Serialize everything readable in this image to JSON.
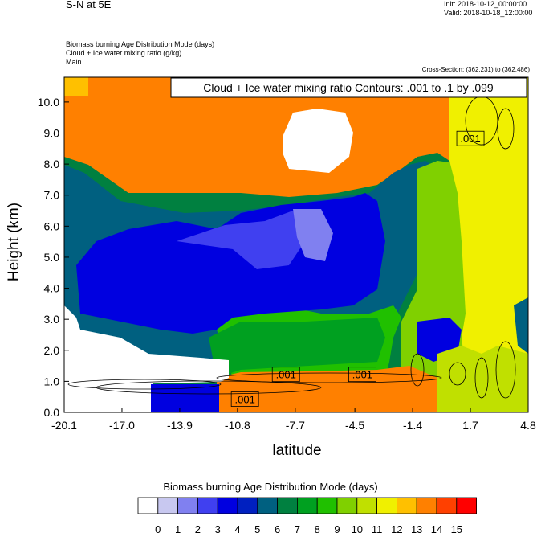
{
  "header": {
    "title": "S-N at 5E",
    "init": "Init: 2018-10-12_00:00:00",
    "valid": "Valid: 2018-10-18_12:00:00",
    "fields": [
      "Biomass burning Age Distribution Mode   (days)",
      "Cloud + Ice water mixing ratio   (g/kg)",
      "Main"
    ],
    "cross_section": "Cross-Section: (362,231) to (362,486)"
  },
  "colors": {
    "palette": [
      "#ffffff",
      "#c8c8f0",
      "#8080f0",
      "#4040f0",
      "#0000e0",
      "#0020c0",
      "#006080",
      "#008040",
      "#00a020",
      "#20c000",
      "#80d000",
      "#c0e000",
      "#f0f000",
      "#ffc000",
      "#ff8000",
      "#ff4000",
      "#ff0000"
    ]
  },
  "chart_data": {
    "type": "heatmap",
    "title": "Cloud + Ice water mixing ratio Contours: .001 to .1 by .099",
    "xlabel": "latitude",
    "ylabel": "Height (km)",
    "x_ticks": [
      "-20.1",
      "-17.0",
      "-13.9",
      "-10.8",
      "-7.7",
      "-4.5",
      "-1.4",
      "1.7",
      "4.8"
    ],
    "xlim": [
      -20.1,
      4.8
    ],
    "y_ticks": [
      "0.0",
      "1.0",
      "2.0",
      "3.0",
      "4.0",
      "5.0",
      "6.0",
      "7.0",
      "8.0",
      "9.0",
      "10.0"
    ],
    "ylim": [
      0,
      10.8
    ],
    "colorbar": {
      "title": "Biomass burning Age Distribution Mode  (days)",
      "levels": [
        "0",
        "1",
        "2",
        "3",
        "4",
        "5",
        "6",
        "7",
        "8",
        "9",
        "10",
        "11",
        "12",
        "13",
        "14",
        "15"
      ]
    },
    "contour_labels": [
      {
        "text": ".001",
        "x": 1.7,
        "y": 8.8
      },
      {
        "text": ".001",
        "x": -8.2,
        "y": 1.2
      },
      {
        "text": ".001",
        "x": -4.1,
        "y": 1.2
      },
      {
        "text": ".001",
        "x": -10.4,
        "y": 0.4
      }
    ],
    "region_levels": [
      {
        "name": "upper-orange",
        "level": 14
      },
      {
        "name": "white-cloud",
        "level": 0
      },
      {
        "name": "teal-band",
        "level": 6
      },
      {
        "name": "blue-core",
        "level": 4
      },
      {
        "name": "yellow-south",
        "level": 12
      },
      {
        "name": "lime-surface",
        "level": 11
      }
    ]
  }
}
